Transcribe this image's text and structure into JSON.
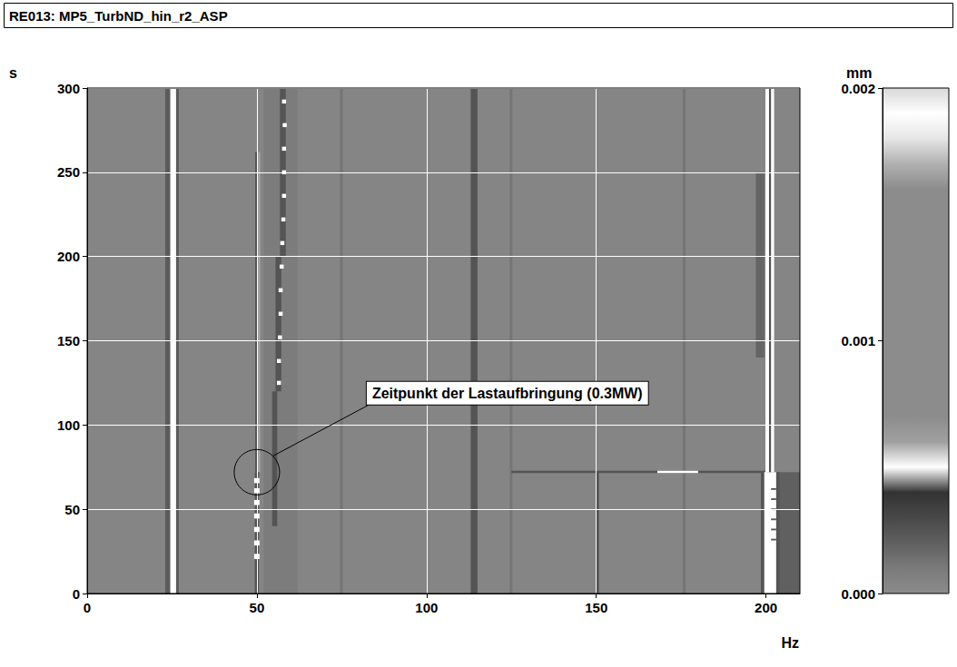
{
  "chart_data": {
    "type": "spectrogram",
    "title": "RE013: MP5_TurbND_hin_r2_ASP",
    "x_label": "Hz",
    "y_label": "s",
    "xlim": [
      0,
      210
    ],
    "xticks": [
      0,
      50,
      100,
      150,
      200
    ],
    "ylim": [
      0,
      300
    ],
    "yticks": [
      0,
      50,
      100,
      150,
      200,
      250,
      300
    ],
    "grid": true,
    "colorbar": {
      "label": "mm",
      "range": [
        0,
        0.002
      ],
      "ticks": [
        {
          "value": 0,
          "label": "0.000"
        },
        {
          "value": 0.001,
          "label": "0.001"
        },
        {
          "value": 0.002,
          "label": "0.002"
        }
      ]
    },
    "annotations": [
      {
        "text": "Zeitpunkt der Lastaufbringung (0.3MW)",
        "x": 50,
        "y": 72
      }
    ],
    "cells": [
      [
        0,
        210,
        0,
        300,
        4e-05
      ],
      [
        52,
        62,
        0,
        300,
        9e-05
      ],
      [
        23,
        24.5,
        0,
        300,
        0.00022
      ],
      [
        24.5,
        26.2,
        0,
        300,
        0.0019
      ],
      [
        26.2,
        27,
        0,
        300,
        0.00022
      ],
      [
        74.5,
        75.3,
        0,
        300,
        0.00012
      ],
      [
        113,
        115,
        0,
        300,
        0.00025
      ],
      [
        124.5,
        125.3,
        0,
        300,
        0.00012
      ],
      [
        150,
        150.8,
        0,
        72,
        0.00025
      ],
      [
        175.5,
        176.3,
        0,
        300,
        0.00012
      ],
      [
        49.5,
        50.4,
        72,
        262,
        0.00025
      ],
      [
        50.4,
        50.9,
        72,
        262,
        0.0017
      ],
      [
        49.4,
        50.6,
        0,
        72,
        0.00025
      ],
      [
        49.2,
        50.8,
        20.5,
        23.5,
        0.0019
      ],
      [
        49.2,
        50.8,
        28.5,
        31.5,
        0.0019
      ],
      [
        49.2,
        50.8,
        36.5,
        39.5,
        0.0019
      ],
      [
        49.2,
        50.8,
        44.5,
        47.5,
        0.0019
      ],
      [
        49.2,
        50.8,
        52.5,
        55.5,
        0.0019
      ],
      [
        49.2,
        50.8,
        59.5,
        62.5,
        0.0019
      ],
      [
        49.2,
        50.8,
        65.5,
        68.5,
        0.0019
      ],
      [
        54.5,
        56,
        40,
        120,
        0.00025
      ],
      [
        55.5,
        57.2,
        120,
        200,
        0.00025
      ],
      [
        56.8,
        58.5,
        200,
        300,
        0.00025
      ],
      [
        55.9,
        57.1,
        123.8,
        126.2,
        0.0019
      ],
      [
        55.9,
        57.1,
        136.8,
        139.2,
        0.0019
      ],
      [
        56.2,
        57.4,
        150.8,
        153.2,
        0.0019
      ],
      [
        56.4,
        57.6,
        164.8,
        167.2,
        0.0019
      ],
      [
        56.4,
        57.6,
        178.8,
        181.2,
        0.0019
      ],
      [
        56.7,
        57.9,
        192.8,
        195.2,
        0.0019
      ],
      [
        56.9,
        58.1,
        206.8,
        209.2,
        0.0019
      ],
      [
        57.2,
        58.4,
        220.8,
        223.2,
        0.0019
      ],
      [
        57.4,
        58.6,
        234.8,
        237.2,
        0.0019
      ],
      [
        57.4,
        58.6,
        248.8,
        251.2,
        0.0019
      ],
      [
        57.4,
        58.6,
        262.8,
        265.2,
        0.0019
      ],
      [
        57.6,
        58.8,
        276.8,
        279.2,
        0.0019
      ],
      [
        57.4,
        58.6,
        290.8,
        293.2,
        0.0019
      ],
      [
        125,
        200,
        71.5,
        72.8,
        0.00025
      ],
      [
        168,
        180,
        71.5,
        72.8,
        0.0019
      ],
      [
        197,
        199.5,
        140,
        250,
        0.00018
      ],
      [
        203,
        210,
        0,
        72,
        0.0002
      ],
      [
        198.5,
        204,
        0,
        72,
        0.00025
      ],
      [
        199.5,
        203,
        0,
        72,
        0.0019
      ],
      [
        201.5,
        203,
        31.5,
        32.5,
        0.00025
      ],
      [
        201.5,
        203,
        37.5,
        38.5,
        0.00025
      ],
      [
        201.5,
        203,
        43.5,
        44.5,
        0.00025
      ],
      [
        201.5,
        203,
        49.5,
        50.5,
        0.00025
      ],
      [
        201.5,
        203,
        55.5,
        56.5,
        0.00025
      ],
      [
        201.5,
        203,
        61.5,
        62.5,
        0.00025
      ],
      [
        199.9,
        200.9,
        72,
        300,
        0.0019
      ],
      [
        200.9,
        201.5,
        72,
        300,
        0.00025
      ],
      [
        201.5,
        202.4,
        72,
        300,
        0.0019
      ]
    ]
  }
}
